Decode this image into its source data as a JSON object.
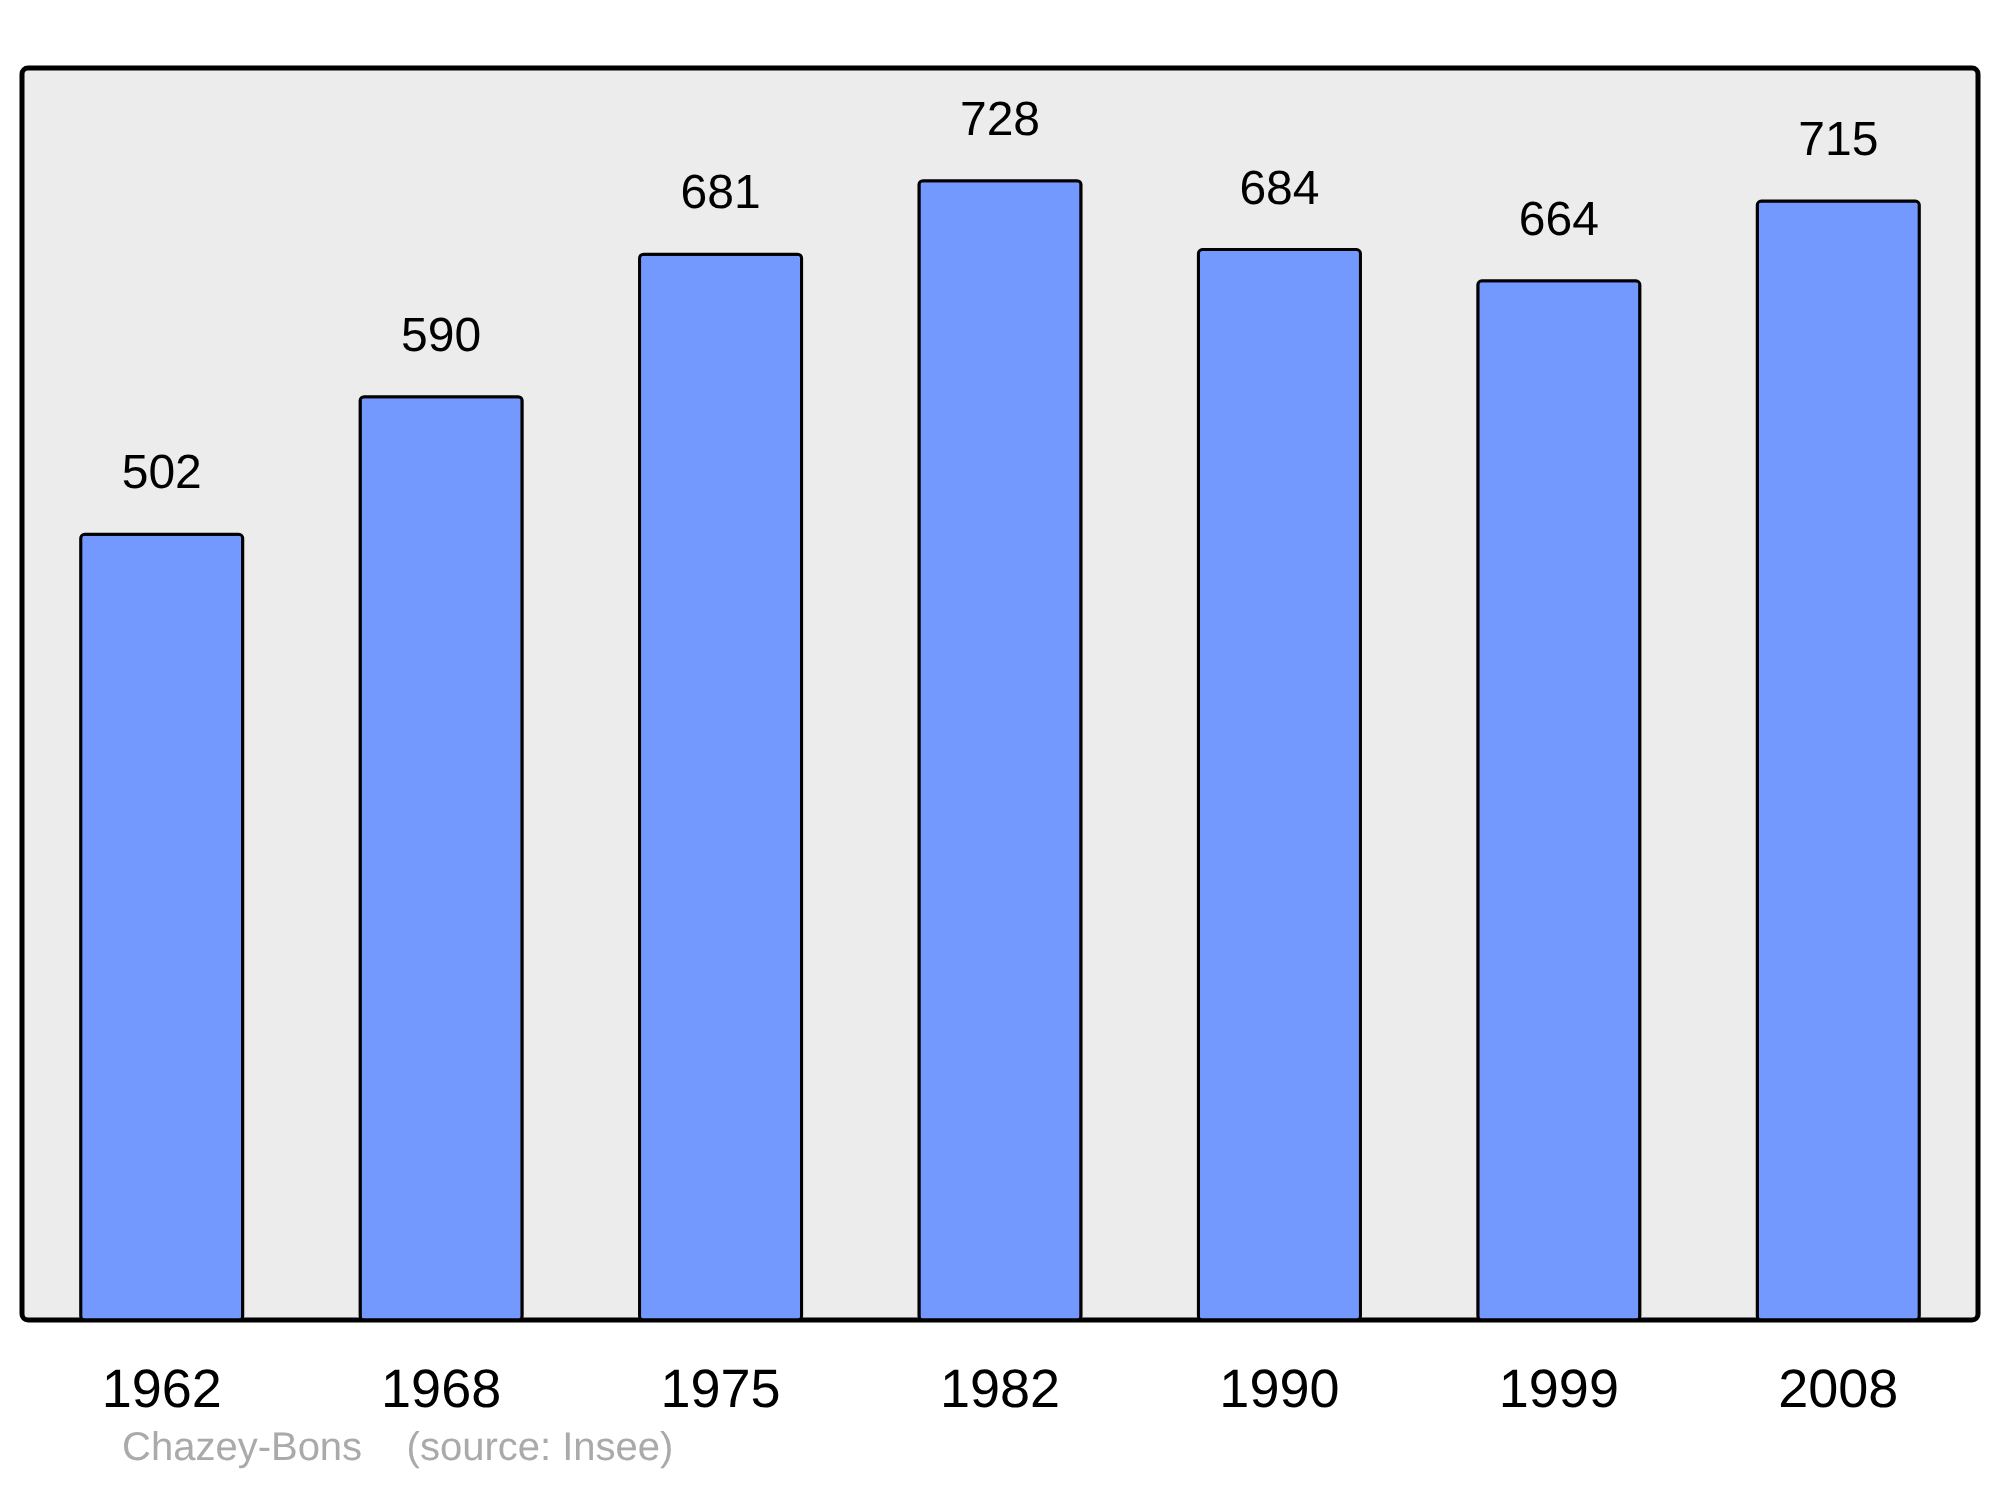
{
  "chart_data": {
    "type": "bar",
    "categories": [
      "1962",
      "1968",
      "1975",
      "1982",
      "1990",
      "1999",
      "2008"
    ],
    "values": [
      502,
      590,
      681,
      728,
      684,
      664,
      715
    ],
    "color": "#7399ff",
    "ylim": [
      0,
      800
    ],
    "data_labels": true,
    "tick_labels": "x",
    "annotations": [
      "Chazey-Bons    (source: Insee)"
    ]
  }
}
